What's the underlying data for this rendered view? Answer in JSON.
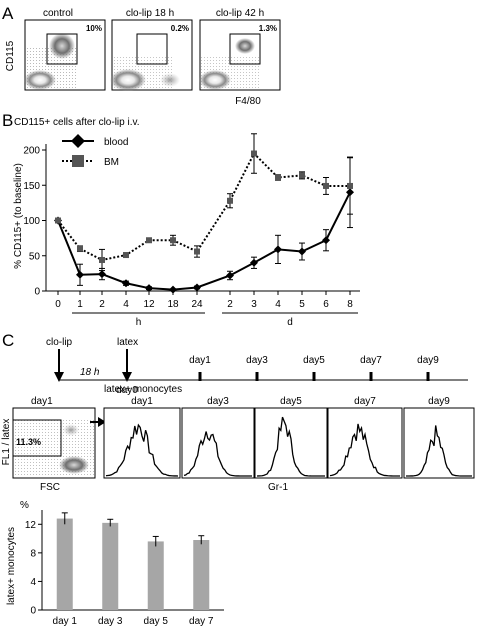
{
  "panels": {
    "A": "A",
    "B": "B",
    "C": "C"
  },
  "panel_a": {
    "ylabel": "CD115",
    "xlabel": "F4/80",
    "plots": [
      {
        "title": "control",
        "percent": "10%"
      },
      {
        "title": "clo-lip 18 h",
        "percent": "0.2%"
      },
      {
        "title": "clo-lip  42 h",
        "percent": "1.3%"
      }
    ]
  },
  "panel_c": {
    "timeline": {
      "cliplabel": "clo-lip",
      "interval": "18 h",
      "latex": "latex",
      "day0": "day0",
      "days": [
        "day1",
        "day3",
        "day5",
        "day7",
        "day9"
      ]
    },
    "dotplot": {
      "day": "day1",
      "population": "monocytes",
      "percent": "11.3%",
      "ylabel": "FL1 / latex",
      "xlabel": "FSC"
    },
    "histograms": {
      "title": "latex+ monocytes",
      "days": [
        "day1",
        "day3",
        "day5",
        "day7",
        "day9"
      ],
      "xlabel": "Gr-1"
    }
  },
  "chart_data": [
    {
      "type": "line",
      "title": "CD115+ cells after clo-lip i.v.",
      "ylabel": "% CD115+ (to baseline)",
      "ylim": [
        0,
        200
      ],
      "yticks": [
        0,
        50,
        100,
        150,
        200
      ],
      "categories": [
        "0",
        "1",
        "2",
        "4",
        "12",
        "18",
        "24",
        "2",
        "3",
        "4",
        "5",
        "6",
        "8"
      ],
      "groups": [
        {
          "label": "h",
          "from": 1,
          "to": 6
        },
        {
          "label": "d",
          "from": 7,
          "to": 12
        }
      ],
      "legend_position": "top-left",
      "series": [
        {
          "name": "blood",
          "marker": "diamond",
          "line": "solid",
          "values": [
            100,
            23,
            24,
            11,
            4,
            2,
            5,
            22,
            40,
            59,
            56,
            72,
            140
          ],
          "errors": [
            3,
            15,
            8,
            3,
            2,
            1,
            2,
            6,
            8,
            20,
            12,
            15,
            50
          ]
        },
        {
          "name": "BM",
          "marker": "square",
          "line": "dotted",
          "values": [
            100,
            60,
            44,
            51,
            72,
            72,
            56,
            128,
            195,
            161,
            164,
            149,
            149
          ],
          "errors": [
            3,
            4,
            15,
            3,
            3,
            7,
            8,
            10,
            28,
            4,
            5,
            12,
            40
          ]
        }
      ]
    },
    {
      "type": "bar",
      "ylabel": "latex+ monocytes",
      "yunit": "%",
      "ylim": [
        0,
        14
      ],
      "yticks": [
        0,
        4,
        8,
        12
      ],
      "categories": [
        "day 1",
        "day 3",
        "day 5",
        "day 7"
      ],
      "values": [
        12.8,
        12.2,
        9.6,
        9.8
      ],
      "errors": [
        0.8,
        0.5,
        0.7,
        0.6
      ],
      "bar_color": "#a6a6a6"
    }
  ]
}
